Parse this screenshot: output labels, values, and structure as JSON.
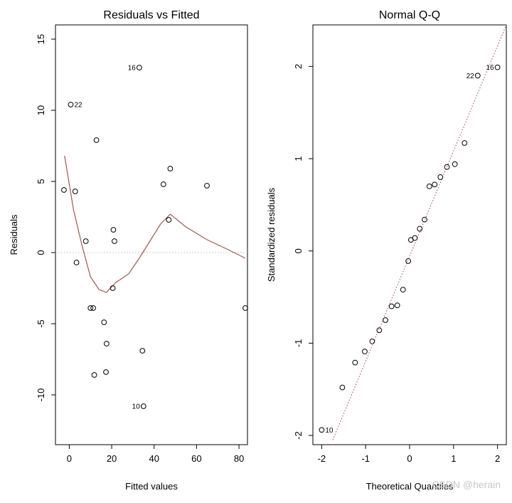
{
  "chart_data": [
    {
      "type": "scatter",
      "title": "Residuals vs Fitted",
      "xlabel": "Fitted values",
      "ylabel": "Residuals",
      "xlim": [
        -6.5,
        84
      ],
      "ylim": [
        -13.5,
        16
      ],
      "xticks": [
        0,
        20,
        40,
        60,
        80
      ],
      "yticks": [
        -10,
        -5,
        0,
        5,
        10,
        15
      ],
      "points": [
        {
          "x": -2.5,
          "y": 4.4
        },
        {
          "x": 0.7,
          "y": 10.4,
          "label": "22"
        },
        {
          "x": 2.8,
          "y": 4.3
        },
        {
          "x": 3.4,
          "y": -0.7
        },
        {
          "x": 7.8,
          "y": 0.8
        },
        {
          "x": 10.0,
          "y": -3.9
        },
        {
          "x": 11.3,
          "y": -3.9
        },
        {
          "x": 11.8,
          "y": -8.6
        },
        {
          "x": 12.8,
          "y": 7.9
        },
        {
          "x": 16.4,
          "y": -4.9
        },
        {
          "x": 17.3,
          "y": -8.4
        },
        {
          "x": 17.6,
          "y": -6.4
        },
        {
          "x": 20.5,
          "y": -2.5
        },
        {
          "x": 20.8,
          "y": 1.6
        },
        {
          "x": 21.3,
          "y": 0.8
        },
        {
          "x": 33.0,
          "y": 13.0,
          "label": "16"
        },
        {
          "x": 34.5,
          "y": -6.9
        },
        {
          "x": 35.0,
          "y": -10.8,
          "label": "10"
        },
        {
          "x": 44.4,
          "y": 4.8
        },
        {
          "x": 46.9,
          "y": 2.3
        },
        {
          "x": 47.6,
          "y": 5.9
        },
        {
          "x": 64.9,
          "y": 4.7
        },
        {
          "x": 83.0,
          "y": -3.9
        }
      ],
      "smooth_line": [
        [
          -2.2,
          6.8
        ],
        [
          2.0,
          3.0
        ],
        [
          6.0,
          0.5
        ],
        [
          10.0,
          -1.7
        ],
        [
          14.0,
          -2.6
        ],
        [
          17.5,
          -2.8
        ],
        [
          22.0,
          -2.1
        ],
        [
          28.0,
          -1.5
        ],
        [
          33.0,
          -0.4
        ],
        [
          38.0,
          0.8
        ],
        [
          43.0,
          2.0
        ],
        [
          47.6,
          2.7
        ],
        [
          55.0,
          1.8
        ],
        [
          65.0,
          0.9
        ],
        [
          75.0,
          0.2
        ],
        [
          83.0,
          -0.4
        ]
      ],
      "zero_line": 0
    },
    {
      "type": "scatter",
      "title": "Normal Q-Q",
      "xlabel": "Theoretical Quantiles",
      "ylabel": "Standardized residuals",
      "xlim": [
        -2.2,
        2.2
      ],
      "ylim": [
        -2.1,
        2.45
      ],
      "xticks": [
        -2,
        -1,
        0,
        1,
        2
      ],
      "yticks": [
        -2,
        -1,
        0,
        1,
        2
      ],
      "points": [
        {
          "x": -2.0,
          "y": -1.94,
          "label": "10"
        },
        {
          "x": -1.53,
          "y": -1.48
        },
        {
          "x": -1.24,
          "y": -1.21
        },
        {
          "x": -1.02,
          "y": -1.09
        },
        {
          "x": -0.85,
          "y": -0.98
        },
        {
          "x": -0.69,
          "y": -0.86
        },
        {
          "x": -0.55,
          "y": -0.75
        },
        {
          "x": -0.41,
          "y": -0.6
        },
        {
          "x": -0.28,
          "y": -0.59
        },
        {
          "x": -0.15,
          "y": -0.42
        },
        {
          "x": -0.03,
          "y": -0.11
        },
        {
          "x": 0.03,
          "y": 0.12
        },
        {
          "x": 0.12,
          "y": 0.14
        },
        {
          "x": 0.23,
          "y": 0.24
        },
        {
          "x": 0.34,
          "y": 0.34
        },
        {
          "x": 0.45,
          "y": 0.7
        },
        {
          "x": 0.57,
          "y": 0.72
        },
        {
          "x": 0.7,
          "y": 0.8
        },
        {
          "x": 0.85,
          "y": 0.91
        },
        {
          "x": 1.03,
          "y": 0.94
        },
        {
          "x": 1.25,
          "y": 1.17
        },
        {
          "x": 1.55,
          "y": 1.9,
          "label": "22"
        },
        {
          "x": 2.0,
          "y": 1.99,
          "label": "16"
        }
      ],
      "ref_line": [
        [
          -1.75,
          -2.05
        ],
        [
          2.2,
          2.45
        ]
      ]
    }
  ],
  "watermark": "CSDN @herain"
}
